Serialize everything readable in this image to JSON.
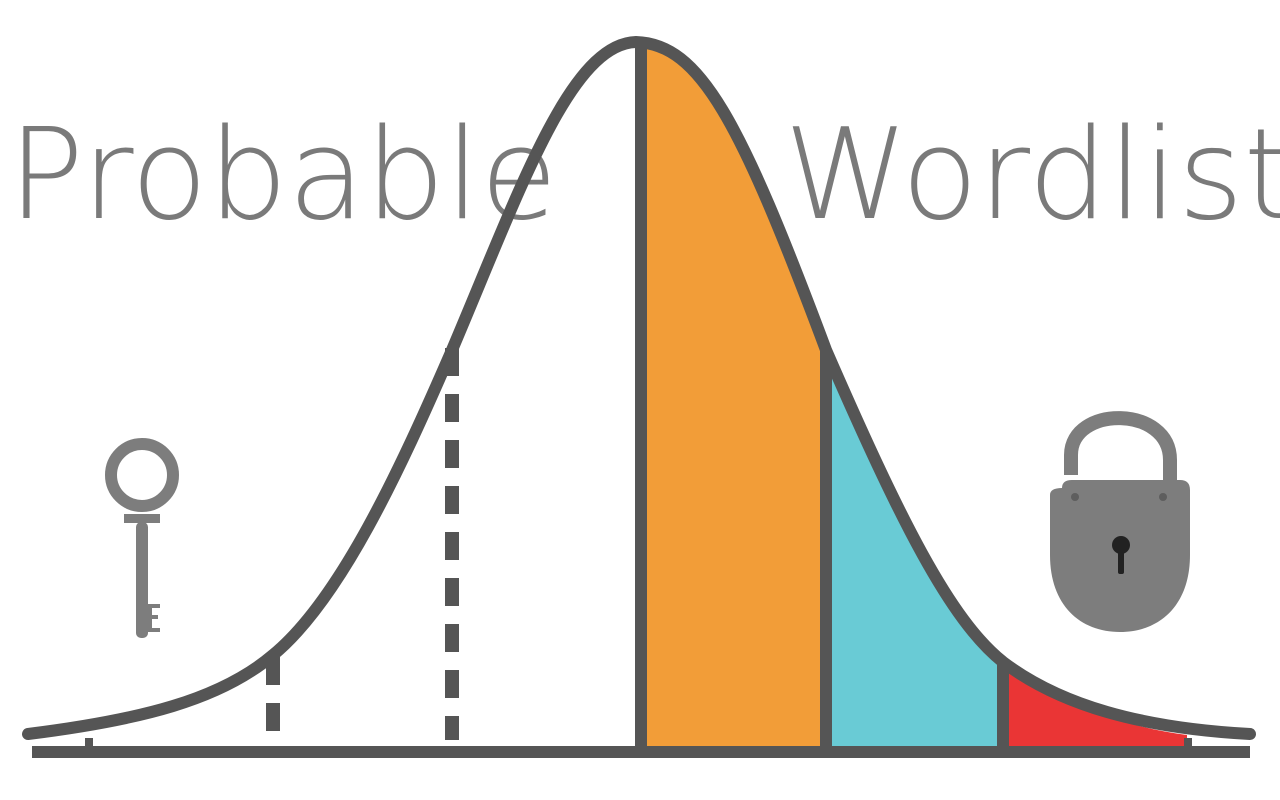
{
  "title": {
    "word1": "Probable",
    "word2": "Wordlists"
  },
  "icons": {
    "left": "key-icon",
    "right": "padlock-icon"
  },
  "colors": {
    "outline": "#555555",
    "text": "#7a7a7a",
    "band_1": "#F29D38",
    "band_2": "#69CBD5",
    "band_3": "#EA3535",
    "icon": "#7d7d7d"
  }
}
